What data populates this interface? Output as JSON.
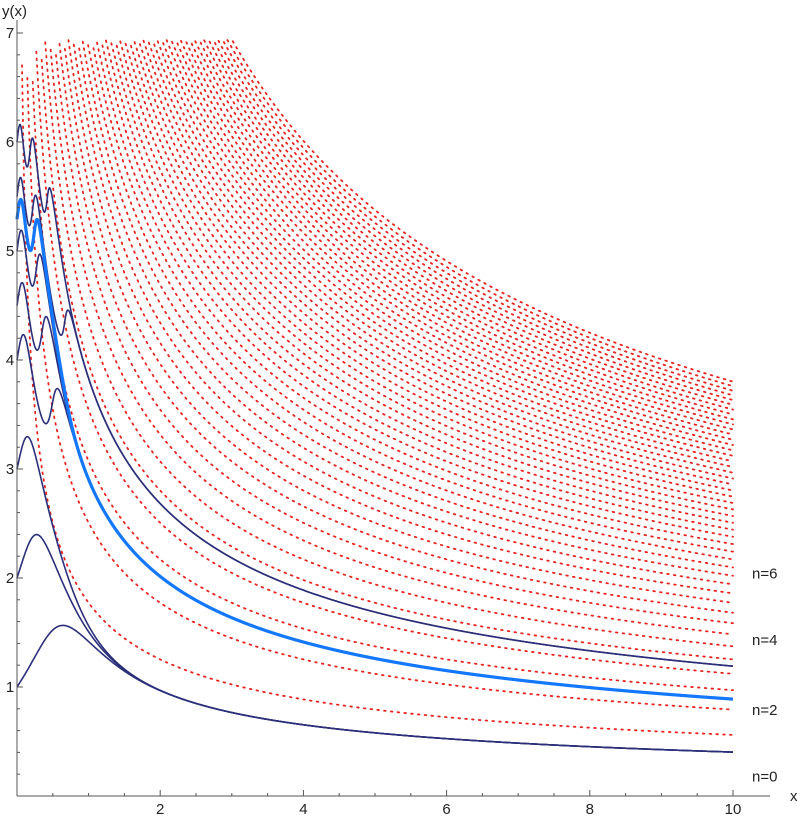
{
  "chart_data": {
    "type": "line",
    "title": "",
    "xlabel": "x",
    "ylabel": "y(x)",
    "xlim": [
      0,
      10.8
    ],
    "ylim": [
      0,
      7.1
    ],
    "grid": false,
    "x_ticks": [
      {
        "value": 2,
        "label": "2"
      },
      {
        "value": 4,
        "label": "4"
      },
      {
        "value": 6,
        "label": "6"
      },
      {
        "value": 8,
        "label": "8"
      },
      {
        "value": 10,
        "label": "10"
      }
    ],
    "y_ticks": [
      {
        "value": 1,
        "label": "1"
      },
      {
        "value": 2,
        "label": "2"
      },
      {
        "value": 3,
        "label": "3"
      },
      {
        "value": 4,
        "label": "4"
      },
      {
        "value": 5,
        "label": "5"
      },
      {
        "value": 6,
        "label": "6"
      },
      {
        "value": 7,
        "label": "7"
      }
    ],
    "colors": {
      "solution": "#2b2f7a",
      "highlight": "#1478ff",
      "nullcline": "#e8231f",
      "axis": "#555555"
    },
    "dotted_nullclines": {
      "family": "y = sqrt(k*pi / x)",
      "k": [
        1,
        2,
        3,
        4,
        5,
        6,
        7,
        8,
        9,
        10,
        11,
        12,
        13,
        14,
        15,
        16,
        17,
        18,
        19,
        20,
        21,
        22,
        23,
        24,
        25,
        26,
        27,
        28,
        29,
        30,
        31,
        32,
        33,
        34,
        35,
        36,
        37,
        38,
        39,
        40,
        41,
        42,
        43,
        44,
        45,
        46
      ]
    },
    "solution_curves": [
      {
        "y0": 1.0,
        "band": "n=0",
        "type": "solution"
      },
      {
        "y0": 2.0,
        "band": "n=0",
        "type": "solution"
      },
      {
        "y0": 3.0,
        "band": "n=2",
        "type": "solution"
      },
      {
        "y0": 4.0,
        "band": "n=2",
        "type": "solution"
      },
      {
        "y0": 4.5,
        "band": "n=4",
        "type": "solution"
      },
      {
        "y0": 5.0,
        "band": "n=4",
        "type": "solution"
      },
      {
        "y0": 5.5,
        "band": "n=6",
        "type": "solution"
      },
      {
        "y0": 6.0,
        "band": "n=6",
        "type": "solution"
      }
    ],
    "separatrix_curves": [
      {
        "y0": 5.3,
        "band": "separatrix",
        "type": "highlight",
        "thick": true
      },
      {
        "y0": 5.3,
        "band": "n=4",
        "type": "highlight",
        "thick": false
      },
      {
        "y0": 5.3,
        "band": "n=6",
        "type": "highlight",
        "thick": false
      }
    ],
    "curve_labels": [
      {
        "text": "n=6",
        "y": 2.04
      },
      {
        "text": "n=4",
        "y": 1.43
      },
      {
        "text": "n=2",
        "y": 0.79
      },
      {
        "text": "n=0",
        "y": 0.18
      }
    ],
    "x_end": 10
  }
}
